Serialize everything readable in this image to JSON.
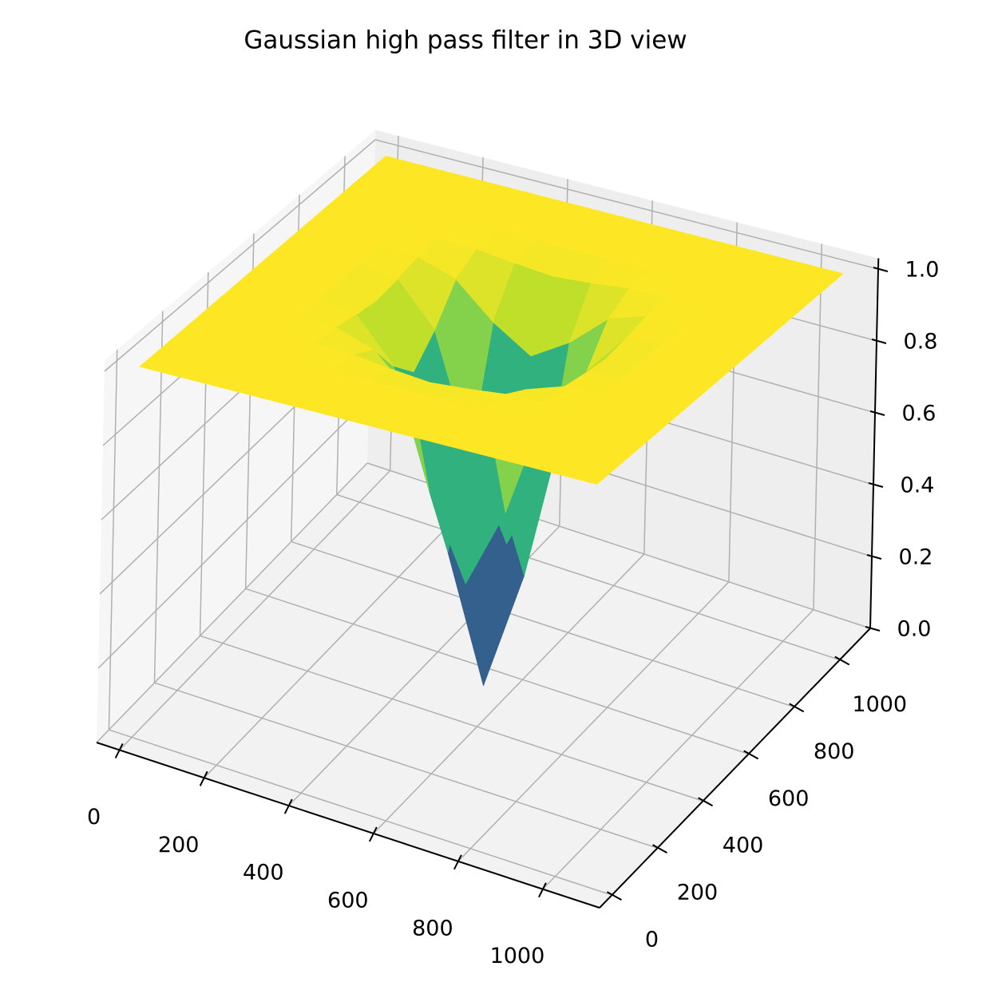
{
  "chart_data": {
    "type": "surface",
    "title": "Gaussian high pass filter in 3D view",
    "x": [
      0,
      90,
      180,
      270,
      360,
      450,
      540,
      630,
      720,
      810,
      900,
      990,
      1080
    ],
    "y": [
      0,
      90,
      180,
      270,
      360,
      450,
      540,
      630,
      720,
      810,
      900,
      990,
      1080
    ],
    "z": [
      [
        1,
        1,
        1,
        1,
        1,
        1,
        1,
        1,
        1,
        1,
        1,
        1,
        1
      ],
      [
        1,
        1,
        1,
        1,
        1,
        1,
        1,
        1,
        1,
        1,
        1,
        1,
        1
      ],
      [
        1,
        1,
        1,
        1,
        1,
        0.999,
        0.998,
        0.999,
        1,
        1,
        1,
        1,
        1
      ],
      [
        1,
        1,
        1,
        0.999,
        0.995,
        0.983,
        0.974,
        0.983,
        0.995,
        0.999,
        1,
        1,
        1
      ],
      [
        1,
        1,
        1,
        0.995,
        0.961,
        0.868,
        0.802,
        0.868,
        0.961,
        0.995,
        1,
        1,
        1
      ],
      [
        1,
        1,
        0.999,
        0.983,
        0.868,
        0.555,
        0.333,
        0.555,
        0.868,
        0.983,
        0.999,
        1,
        1
      ],
      [
        1,
        1,
        0.998,
        0.974,
        0.802,
        0.333,
        0,
        0.333,
        0.802,
        0.974,
        0.998,
        1,
        1
      ],
      [
        1,
        1,
        0.999,
        0.983,
        0.868,
        0.555,
        0.333,
        0.555,
        0.868,
        0.983,
        0.999,
        1,
        1
      ],
      [
        1,
        1,
        1,
        0.995,
        0.961,
        0.868,
        0.802,
        0.868,
        0.961,
        0.995,
        1,
        1,
        1
      ],
      [
        1,
        1,
        1,
        0.999,
        0.995,
        0.983,
        0.974,
        0.983,
        0.995,
        0.999,
        1,
        1,
        1
      ],
      [
        1,
        1,
        1,
        1,
        1,
        0.999,
        0.998,
        0.999,
        1,
        1,
        1,
        1,
        1
      ],
      [
        1,
        1,
        1,
        1,
        1,
        1,
        1,
        1,
        1,
        1,
        1,
        1,
        1
      ],
      [
        1,
        1,
        1,
        1,
        1,
        1,
        1,
        1,
        1,
        1,
        1,
        1,
        1
      ]
    ],
    "colormap": "viridis",
    "xlim": [
      -54,
      1134
    ],
    "ylim": [
      -54,
      1134
    ],
    "zlim": [
      0,
      1.03
    ],
    "xticks": [
      0,
      200,
      400,
      600,
      800,
      1000
    ],
    "yticks": [
      0,
      200,
      400,
      600,
      800,
      1000
    ],
    "zticks": [
      {
        "value": 0,
        "label": "0.0"
      },
      0.2,
      0.4,
      0.6,
      0.8,
      {
        "value": 1,
        "label": "1.0"
      }
    ],
    "grid": true
  }
}
